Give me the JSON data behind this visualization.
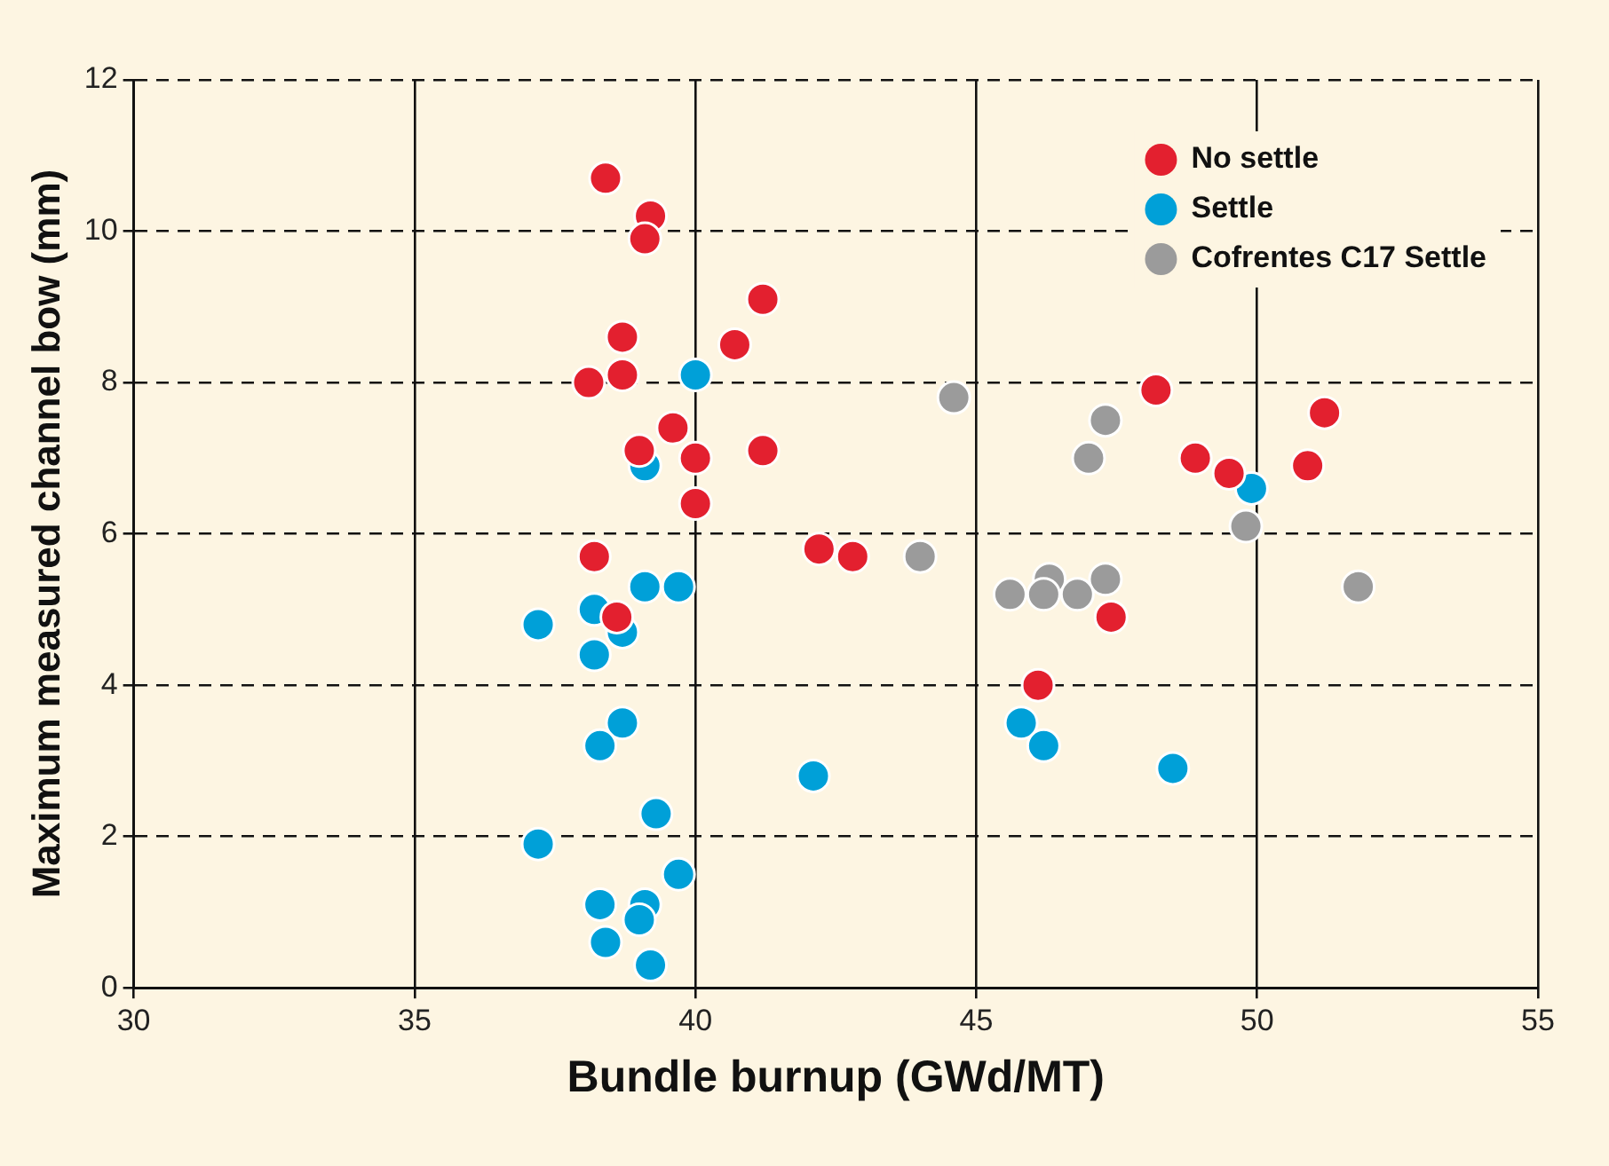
{
  "chart_data": {
    "type": "scatter",
    "xlabel": "Bundle burnup (GWd/MT)",
    "ylabel": "Maximum measured channel bow (mm)",
    "xlim": [
      30,
      55
    ],
    "xticks": [
      30,
      35,
      40,
      45,
      50,
      55
    ],
    "ylim": [
      0,
      12
    ],
    "yticks": [
      0,
      2,
      4,
      6,
      8,
      10,
      12
    ],
    "grid": true,
    "legend": "top right",
    "marker": "circle",
    "series": [
      {
        "name": "No settle",
        "color": "#e3202f",
        "x": [
          38.4,
          39.2,
          39.1,
          41.2,
          38.7,
          40.7,
          38.1,
          38.7,
          48.2,
          51.2,
          39.0,
          39.6,
          40.0,
          41.2,
          48.9,
          49.5,
          50.9,
          40.0,
          38.2,
          42.2,
          42.8,
          38.6,
          47.4,
          46.1
        ],
        "values": [
          10.7,
          10.2,
          9.9,
          9.1,
          8.6,
          8.5,
          8.0,
          8.1,
          7.9,
          7.6,
          7.1,
          7.4,
          7.0,
          7.1,
          7.0,
          6.8,
          6.9,
          6.4,
          5.7,
          5.8,
          5.7,
          4.9,
          4.9,
          4.0
        ]
      },
      {
        "name": "Settle",
        "color": "#00a0d8",
        "x": [
          40.0,
          39.1,
          49.9,
          39.1,
          39.7,
          37.2,
          38.2,
          38.7,
          38.2,
          38.7,
          38.3,
          45.8,
          46.2,
          42.1,
          48.5,
          39.3,
          37.2,
          39.7,
          38.3,
          39.1,
          39.0,
          38.4,
          39.2
        ],
        "values": [
          8.1,
          6.9,
          6.6,
          5.3,
          5.3,
          4.8,
          5.0,
          4.7,
          4.4,
          3.5,
          3.2,
          3.5,
          3.2,
          2.8,
          2.9,
          2.3,
          1.9,
          1.5,
          1.1,
          1.1,
          0.9,
          0.6,
          0.3
        ]
      },
      {
        "name": "Cofrentes C17 Settle",
        "color": "#9b9b9b",
        "x": [
          44.6,
          47.3,
          47.0,
          44.0,
          49.8,
          51.8,
          45.6,
          46.3,
          46.2,
          47.3,
          46.8
        ],
        "values": [
          7.8,
          7.5,
          7.0,
          5.7,
          6.1,
          5.3,
          5.2,
          5.4,
          5.2,
          5.4,
          5.2
        ]
      }
    ]
  }
}
